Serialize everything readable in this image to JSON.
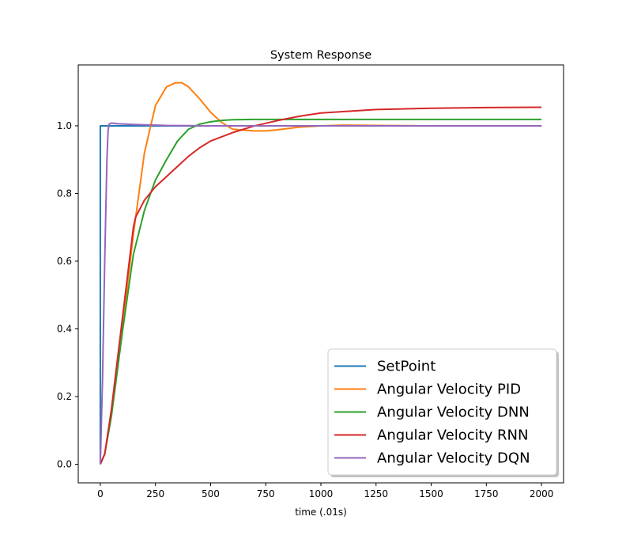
{
  "chart_data": {
    "type": "line",
    "title": "System Response",
    "xlabel": "time (.01s)",
    "ylabel": "",
    "xlim": [
      -100,
      2100
    ],
    "ylim": [
      -0.055,
      1.18
    ],
    "xticks": [
      0,
      250,
      500,
      750,
      1000,
      1250,
      1500,
      1750,
      2000
    ],
    "yticks": [
      0.0,
      0.2,
      0.4,
      0.6,
      0.8,
      1.0
    ],
    "grid": false,
    "legend_position": "lower-right",
    "series": [
      {
        "name": "SetPoint",
        "color": "#1f77b4",
        "x": [
          0,
          0,
          2000
        ],
        "y": [
          0.0,
          1.0,
          1.0
        ]
      },
      {
        "name": "Angular Velocity PID",
        "color": "#ff7f0e",
        "x": [
          0,
          20,
          50,
          100,
          150,
          200,
          250,
          300,
          340,
          370,
          400,
          450,
          500,
          550,
          600,
          650,
          700,
          750,
          800,
          900,
          1000,
          1100,
          1250,
          1500,
          1750,
          2000
        ],
        "y": [
          0.0,
          0.03,
          0.15,
          0.4,
          0.68,
          0.92,
          1.06,
          1.115,
          1.127,
          1.127,
          1.115,
          1.08,
          1.04,
          1.01,
          0.99,
          0.987,
          0.985,
          0.985,
          0.988,
          0.996,
          1.0,
          1.002,
          1.001,
          1.0,
          1.0,
          1.0
        ]
      },
      {
        "name": "Angular Velocity DNN",
        "color": "#2ca02c",
        "x": [
          0,
          20,
          50,
          100,
          150,
          200,
          250,
          300,
          350,
          400,
          450,
          500,
          550,
          600,
          700,
          800,
          1000,
          1500,
          2000
        ],
        "y": [
          0.0,
          0.03,
          0.14,
          0.39,
          0.62,
          0.75,
          0.84,
          0.9,
          0.955,
          0.99,
          1.005,
          1.012,
          1.016,
          1.018,
          1.019,
          1.019,
          1.019,
          1.019,
          1.019
        ]
      },
      {
        "name": "Angular Velocity RNN",
        "color": "#d62728",
        "x": [
          0,
          20,
          50,
          100,
          150,
          160,
          200,
          250,
          300,
          350,
          400,
          450,
          500,
          600,
          700,
          800,
          900,
          1000,
          1250,
          1500,
          1750,
          2000
        ],
        "y": [
          0.0,
          0.03,
          0.16,
          0.43,
          0.7,
          0.73,
          0.78,
          0.82,
          0.85,
          0.88,
          0.91,
          0.935,
          0.955,
          0.98,
          1.0,
          1.015,
          1.028,
          1.038,
          1.048,
          1.052,
          1.054,
          1.055
        ]
      },
      {
        "name": "Angular Velocity DQN",
        "color": "#9467bd",
        "x": [
          0,
          10,
          20,
          30,
          35,
          40,
          50,
          80,
          150,
          300,
          500,
          1000,
          2000
        ],
        "y": [
          0.0,
          0.25,
          0.6,
          0.9,
          0.985,
          1.005,
          1.008,
          1.006,
          1.004,
          1.001,
          1.0,
          1.0,
          1.0
        ]
      }
    ]
  }
}
